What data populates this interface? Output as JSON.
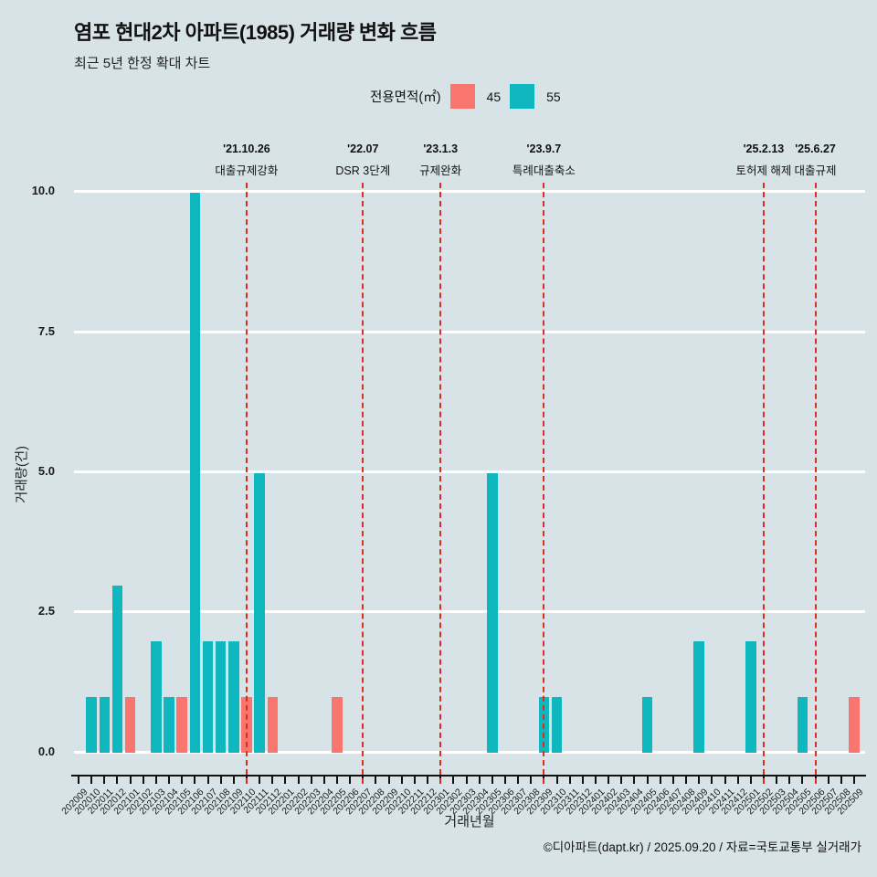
{
  "title": "염포 현대2차 아파트(1985) 거래량 변화 흐름",
  "subtitle": "최근 5년 한정 확대 차트",
  "legend": {
    "label": "전용면적(㎡)",
    "items": [
      {
        "name": "45",
        "color": "#F8766D"
      },
      {
        "name": "55",
        "color": "#0EB8BE"
      }
    ]
  },
  "footer": "©디아파트(dapt.kr) / 2025.09.20 / 자료=국토교통부 실거래가",
  "colors": {
    "background": "#d8e3e8",
    "gridline": "#ffffff",
    "series_45": "#F8766D",
    "series_55": "#0EB8BE",
    "event_line": "#e02a22",
    "axis": "#111111"
  },
  "chart_data": {
    "type": "bar",
    "title": "염포 현대2차 아파트(1985) 거래량 변화 흐름",
    "subtitle": "최근 5년 한정 확대 차트",
    "xlabel": "거래년월",
    "ylabel": "거래량(건)",
    "ylim": [
      0,
      10
    ],
    "yticks": [
      "0.0",
      "2.5",
      "5.0",
      "7.5",
      "10.0"
    ],
    "grid": "major-horizontal-white",
    "legend_position": "top",
    "categories": [
      "202009",
      "202010",
      "202011",
      "202012",
      "202101",
      "202102",
      "202103",
      "202104",
      "202105",
      "202106",
      "202107",
      "202108",
      "202109",
      "202110",
      "202111",
      "202112",
      "202201",
      "202202",
      "202203",
      "202204",
      "202205",
      "202206",
      "202207",
      "202208",
      "202209",
      "202210",
      "202211",
      "202212",
      "202301",
      "202302",
      "202303",
      "202304",
      "202305",
      "202306",
      "202307",
      "202308",
      "202309",
      "202310",
      "202311",
      "202312",
      "202401",
      "202402",
      "202403",
      "202404",
      "202405",
      "202406",
      "202407",
      "202408",
      "202409",
      "202410",
      "202411",
      "202412",
      "202501",
      "202502",
      "202503",
      "202504",
      "202505",
      "202506",
      "202507",
      "202508",
      "202509"
    ],
    "series": [
      {
        "name": "45",
        "color": "#F8766D",
        "points": {
          "202101": 1,
          "202105": 1,
          "202110": 1,
          "202112": 1,
          "202205": 1,
          "202509": 1
        }
      },
      {
        "name": "55",
        "color": "#0EB8BE",
        "points": {
          "202010": 1,
          "202011": 1,
          "202012": 3,
          "202103": 2,
          "202104": 1,
          "202106": 10,
          "202107": 2,
          "202108": 2,
          "202109": 2,
          "202111": 5,
          "202305": 5,
          "202309": 1,
          "202310": 1,
          "202405": 1,
          "202409": 2,
          "202501": 2,
          "202505": 1
        }
      }
    ],
    "annotations": [
      {
        "date": "'21.10.26",
        "label": "대출규제강화",
        "month": "202110"
      },
      {
        "date": "'22.07",
        "label": "DSR 3단계",
        "month": "202207"
      },
      {
        "date": "'23.1.3",
        "label": "규제완화",
        "month": "202301"
      },
      {
        "date": "'23.9.7",
        "label": "특례대출축소",
        "month": "202309"
      },
      {
        "date": "'25.2.13",
        "label": "토허제 해제",
        "month": "202502"
      },
      {
        "date": "'25.6.27",
        "label": "대출규제",
        "month": "202506"
      }
    ]
  }
}
